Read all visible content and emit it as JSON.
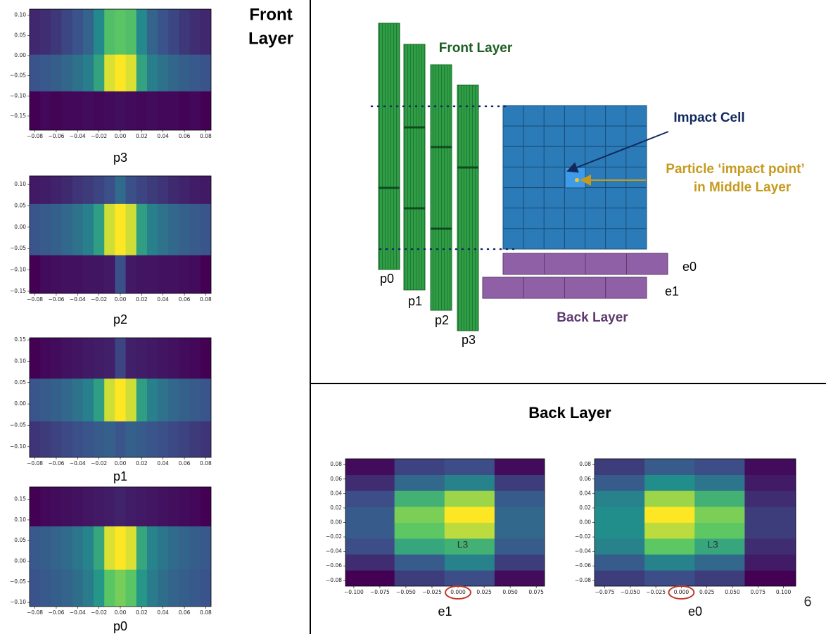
{
  "slide": {
    "front_title_1": "Front",
    "front_title_2": "Layer",
    "back_title": "Back Layer",
    "page_number": "6"
  },
  "diagram": {
    "front_layer": "Front Layer",
    "impact_cell": "Impact Cell",
    "impact_point_1": "Particle ‘impact point’",
    "impact_point_2": "in Middle Layer",
    "back_layer": "Back Layer",
    "p0": "p0",
    "p1": "p1",
    "p2": "p2",
    "p3": "p3",
    "e0": "e0",
    "e1": "e1"
  },
  "chart_data": [
    {
      "type": "heatmap",
      "xlabel": "p3",
      "colormap": "viridis",
      "x_edges": [
        -0.085,
        -0.075,
        -0.065,
        -0.055,
        -0.045,
        -0.035,
        -0.025,
        -0.015,
        -0.005,
        0.005,
        0.015,
        0.025,
        0.035,
        0.045,
        0.055,
        0.065,
        0.075,
        0.085
      ],
      "y_edges": [
        -0.185,
        -0.088,
        0.003,
        0.115
      ],
      "values": [
        [
          0.06,
          0.08,
          0.07,
          0.08,
          0.08,
          0.09,
          0.08,
          0.09,
          0.1,
          0.09,
          0.08,
          0.09,
          0.08,
          0.08,
          0.07,
          0.08,
          0.06
        ],
        [
          0.3,
          0.32,
          0.34,
          0.37,
          0.41,
          0.46,
          0.6,
          0.95,
          1.0,
          0.95,
          0.6,
          0.46,
          0.41,
          0.37,
          0.34,
          0.32,
          0.3
        ],
        [
          0.17,
          0.19,
          0.22,
          0.26,
          0.3,
          0.36,
          0.5,
          0.72,
          0.75,
          0.72,
          0.5,
          0.36,
          0.3,
          0.26,
          0.22,
          0.19,
          0.17
        ]
      ],
      "xlim": [
        -0.085,
        0.085
      ],
      "ylim": [
        -0.185,
        0.115
      ],
      "xticks": [
        {
          "value": -0.08,
          "label": "−0.08"
        },
        {
          "value": -0.06,
          "label": "−0.06"
        },
        {
          "value": -0.04,
          "label": "−0.04"
        },
        {
          "value": -0.02,
          "label": "−0.02"
        },
        {
          "value": 0,
          "label": "0.00"
        },
        0.02,
        0.04,
        0.06,
        0.08
      ],
      "yticks": [
        {
          "value": -0.15,
          "label": "−0.15"
        },
        {
          "value": -0.1,
          "label": "−0.10"
        },
        {
          "value": -0.05,
          "label": "−0.05"
        },
        {
          "value": 0,
          "label": "0.00"
        },
        0.05,
        {
          "value": 0.1,
          "label": "0.10"
        }
      ]
    },
    {
      "type": "heatmap",
      "xlabel": "p2",
      "colormap": "viridis",
      "x_edges": [
        -0.085,
        -0.075,
        -0.065,
        -0.055,
        -0.045,
        -0.035,
        -0.025,
        -0.015,
        -0.005,
        0.005,
        0.015,
        0.025,
        0.035,
        0.045,
        0.055,
        0.065,
        0.075,
        0.085
      ],
      "y_edges": [
        -0.155,
        -0.065,
        0.055,
        0.12
      ],
      "values": [
        [
          0.05,
          0.08,
          0.09,
          0.1,
          0.1,
          0.11,
          0.11,
          0.12,
          0.28,
          0.12,
          0.11,
          0.11,
          0.1,
          0.1,
          0.09,
          0.08,
          0.05
        ],
        [
          0.3,
          0.32,
          0.34,
          0.37,
          0.41,
          0.46,
          0.58,
          0.93,
          1.0,
          0.93,
          0.58,
          0.46,
          0.41,
          0.37,
          0.34,
          0.32,
          0.3
        ],
        [
          0.12,
          0.13,
          0.15,
          0.17,
          0.2,
          0.22,
          0.25,
          0.28,
          0.38,
          0.28,
          0.25,
          0.22,
          0.2,
          0.17,
          0.15,
          0.13,
          0.12
        ]
      ],
      "xlim": [
        -0.085,
        0.085
      ],
      "ylim": [
        -0.155,
        0.12
      ],
      "xticks": [
        {
          "value": -0.08,
          "label": "−0.08"
        },
        {
          "value": -0.06,
          "label": "−0.06"
        },
        {
          "value": -0.04,
          "label": "−0.04"
        },
        {
          "value": -0.02,
          "label": "−0.02"
        },
        {
          "value": 0,
          "label": "0.00"
        },
        0.02,
        0.04,
        0.06,
        0.08
      ],
      "yticks": [
        {
          "value": -0.15,
          "label": "−0.15"
        },
        {
          "value": -0.1,
          "label": "−0.10"
        },
        {
          "value": -0.05,
          "label": "−0.05"
        },
        {
          "value": 0,
          "label": "0.00"
        },
        0.05,
        {
          "value": 0.1,
          "label": "0.10"
        }
      ]
    },
    {
      "type": "heatmap",
      "xlabel": "p1",
      "colormap": "viridis",
      "x_edges": [
        -0.085,
        -0.075,
        -0.065,
        -0.055,
        -0.045,
        -0.035,
        -0.025,
        -0.015,
        -0.005,
        0.005,
        0.015,
        0.025,
        0.035,
        0.045,
        0.055,
        0.065,
        0.075,
        0.085
      ],
      "y_edges": [
        -0.125,
        -0.04,
        0.06,
        0.155
      ],
      "values": [
        [
          0.2,
          0.22,
          0.24,
          0.26,
          0.28,
          0.3,
          0.32,
          0.34,
          0.3,
          0.34,
          0.32,
          0.3,
          0.28,
          0.26,
          0.24,
          0.22,
          0.2
        ],
        [
          0.3,
          0.32,
          0.34,
          0.37,
          0.41,
          0.46,
          0.58,
          0.93,
          1.0,
          0.93,
          0.58,
          0.46,
          0.41,
          0.37,
          0.34,
          0.32,
          0.3
        ],
        [
          0.05,
          0.07,
          0.08,
          0.1,
          0.11,
          0.12,
          0.13,
          0.14,
          0.25,
          0.14,
          0.13,
          0.12,
          0.11,
          0.1,
          0.08,
          0.07,
          0.05
        ]
      ],
      "xlim": [
        -0.085,
        0.085
      ],
      "ylim": [
        -0.125,
        0.155
      ],
      "xticks": [
        {
          "value": -0.08,
          "label": "−0.08"
        },
        {
          "value": -0.06,
          "label": "−0.06"
        },
        {
          "value": -0.04,
          "label": "−0.04"
        },
        {
          "value": -0.02,
          "label": "−0.02"
        },
        {
          "value": 0,
          "label": "0.00"
        },
        0.02,
        0.04,
        0.06,
        0.08
      ],
      "yticks": [
        {
          "value": -0.1,
          "label": "−0.10"
        },
        {
          "value": -0.05,
          "label": "−0.05"
        },
        {
          "value": 0,
          "label": "0.00"
        },
        0.05,
        {
          "value": 0.1,
          "label": "0.10"
        },
        0.15
      ]
    },
    {
      "type": "heatmap",
      "xlabel": "p0",
      "colormap": "viridis",
      "x_edges": [
        -0.085,
        -0.075,
        -0.065,
        -0.055,
        -0.045,
        -0.035,
        -0.025,
        -0.015,
        -0.005,
        0.005,
        0.015,
        0.025,
        0.035,
        0.045,
        0.055,
        0.065,
        0.075,
        0.085
      ],
      "y_edges": [
        -0.11,
        -0.02,
        0.085,
        0.18
      ],
      "values": [
        [
          0.3,
          0.32,
          0.34,
          0.36,
          0.4,
          0.45,
          0.55,
          0.75,
          0.8,
          0.75,
          0.55,
          0.45,
          0.4,
          0.36,
          0.34,
          0.32,
          0.3
        ],
        [
          0.32,
          0.34,
          0.36,
          0.39,
          0.43,
          0.48,
          0.62,
          0.95,
          1.0,
          0.95,
          0.62,
          0.48,
          0.43,
          0.39,
          0.36,
          0.34,
          0.32
        ],
        [
          0.06,
          0.08,
          0.09,
          0.1,
          0.11,
          0.12,
          0.13,
          0.14,
          0.16,
          0.14,
          0.13,
          0.12,
          0.11,
          0.1,
          0.09,
          0.08,
          0.06
        ]
      ],
      "xlim": [
        -0.085,
        0.085
      ],
      "ylim": [
        -0.11,
        0.18
      ],
      "xticks": [
        {
          "value": -0.08,
          "label": "−0.08"
        },
        {
          "value": -0.06,
          "label": "−0.06"
        },
        {
          "value": -0.04,
          "label": "−0.04"
        },
        {
          "value": -0.02,
          "label": "−0.02"
        },
        {
          "value": 0,
          "label": "0.00"
        },
        0.02,
        0.04,
        0.06,
        0.08
      ],
      "yticks": [
        {
          "value": -0.1,
          "label": "−0.10"
        },
        {
          "value": -0.05,
          "label": "−0.05"
        },
        {
          "value": 0,
          "label": "0.00"
        },
        0.05,
        {
          "value": 0.1,
          "label": "0.10"
        },
        0.15
      ]
    },
    {
      "type": "heatmap",
      "xlabel": "e1",
      "colormap": "viridis",
      "annotation": "L3",
      "x_edges": [
        -0.108,
        -0.061,
        -0.013,
        0.035,
        0.083
      ],
      "y_edges": [
        -0.088,
        -0.066,
        -0.044,
        -0.022,
        0,
        0.022,
        0.044,
        0.066,
        0.088
      ],
      "values": [
        [
          0.02,
          0.2,
          0.25,
          0.05
        ],
        [
          0.15,
          0.3,
          0.45,
          0.2
        ],
        [
          0.25,
          0.6,
          0.65,
          0.3
        ],
        [
          0.3,
          0.75,
          0.9,
          0.35
        ],
        [
          0.3,
          0.8,
          1.0,
          0.35
        ],
        [
          0.25,
          0.65,
          0.85,
          0.3
        ],
        [
          0.15,
          0.35,
          0.45,
          0.2
        ],
        [
          0.05,
          0.22,
          0.25,
          0.05
        ]
      ],
      "xlim": [
        -0.108,
        0.083
      ],
      "ylim": [
        -0.088,
        0.088
      ],
      "xticks": [
        {
          "value": -0.1,
          "label": "−0.100"
        },
        {
          "value": -0.075,
          "label": "−0.075"
        },
        {
          "value": -0.05,
          "label": "−0.050"
        },
        {
          "value": -0.025,
          "label": "−0.025"
        },
        {
          "value": 0,
          "label": "0.000"
        },
        0.025,
        {
          "value": 0.05,
          "label": "0.050"
        },
        0.075
      ],
      "yticks": [
        {
          "value": -0.08,
          "label": "−0.08"
        },
        {
          "value": -0.06,
          "label": "−0.06"
        },
        {
          "value": -0.04,
          "label": "−0.04"
        },
        {
          "value": -0.02,
          "label": "−0.02"
        },
        {
          "value": 0,
          "label": "0.00"
        },
        0.02,
        0.04,
        0.06,
        0.08
      ]
    },
    {
      "type": "heatmap",
      "xlabel": "e0",
      "colormap": "viridis",
      "annotation": "L3",
      "x_edges": [
        -0.085,
        -0.036,
        0.013,
        0.062,
        0.112
      ],
      "y_edges": [
        -0.088,
        -0.066,
        -0.044,
        -0.022,
        0,
        0.022,
        0.044,
        0.066,
        0.088
      ],
      "values": [
        [
          0.2,
          0.25,
          0.2,
          0.02
        ],
        [
          0.3,
          0.45,
          0.35,
          0.1
        ],
        [
          0.45,
          0.75,
          0.6,
          0.15
        ],
        [
          0.5,
          0.9,
          0.75,
          0.2
        ],
        [
          0.5,
          1.0,
          0.8,
          0.2
        ],
        [
          0.45,
          0.85,
          0.65,
          0.15
        ],
        [
          0.3,
          0.5,
          0.4,
          0.1
        ],
        [
          0.2,
          0.3,
          0.25,
          0.05
        ]
      ],
      "xlim": [
        -0.085,
        0.112
      ],
      "ylim": [
        -0.088,
        0.088
      ],
      "xticks": [
        {
          "value": -0.075,
          "label": "−0.075"
        },
        {
          "value": -0.05,
          "label": "−0.050"
        },
        {
          "value": -0.025,
          "label": "−0.025"
        },
        {
          "value": 0,
          "label": "0.000"
        },
        0.025,
        {
          "value": 0.05,
          "label": "0.050"
        },
        0.075,
        {
          "value": 0.1,
          "label": "0.100"
        }
      ],
      "yticks": [
        {
          "value": -0.08,
          "label": "−0.08"
        },
        {
          "value": -0.06,
          "label": "−0.06"
        },
        {
          "value": -0.04,
          "label": "−0.04"
        },
        {
          "value": -0.02,
          "label": "−0.02"
        },
        {
          "value": 0,
          "label": "0.00"
        },
        0.02,
        0.04,
        0.06,
        0.08
      ]
    }
  ]
}
